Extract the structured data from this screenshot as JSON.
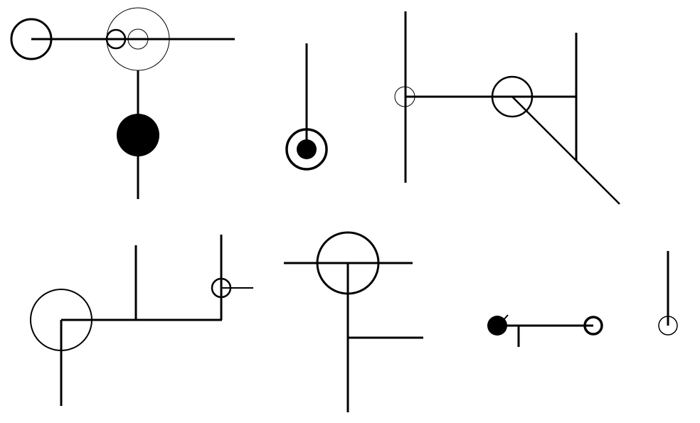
{
  "canvas": {
    "background": "#ffffff",
    "ink": "#000000"
  }
}
